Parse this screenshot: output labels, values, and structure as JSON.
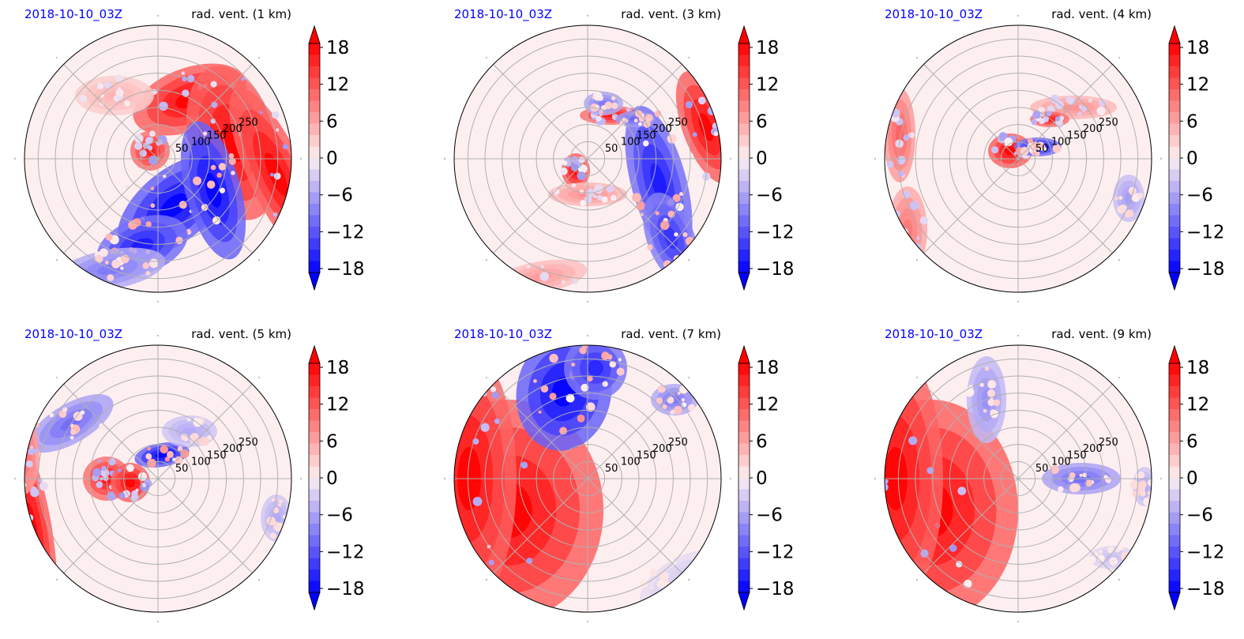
{
  "figure": {
    "colorbar_ticks": [
      "18",
      "12",
      "6",
      "0",
      "−6",
      "−12",
      "−18"
    ]
  },
  "colors": {
    "title_left": "#0000ff",
    "title_right": "#000000",
    "positive": "#ff0000",
    "negative": "#0000ff",
    "grid": "#b0b0b0"
  },
  "chart_data": [
    {
      "type": "polar-contourf",
      "title_left": "2018-10-10_03Z",
      "title_right": "rad. vent. (1 km)",
      "radial_ticks": [
        "50",
        "100",
        "150",
        "200",
        "250"
      ],
      "colorbar": {
        "min": -18,
        "max": 18,
        "ticks": [
          18,
          12,
          6,
          0,
          -6,
          -12,
          -18
        ],
        "extend": "both"
      },
      "features": [
        {
          "sign": "positive",
          "region": "northeast to east",
          "value": 18
        },
        {
          "sign": "negative",
          "region": "south to southeast",
          "value": -18
        }
      ]
    },
    {
      "type": "polar-contourf",
      "title_left": "2018-10-10_03Z",
      "title_right": "rad. vent. (3 km)",
      "radial_ticks": [
        "50",
        "100",
        "150",
        "200",
        "250"
      ],
      "colorbar": {
        "min": -18,
        "max": 18,
        "ticks": [
          18,
          12,
          6,
          0,
          -6,
          -12,
          -18
        ],
        "extend": "both"
      },
      "features": [
        {
          "sign": "positive",
          "region": "east edge",
          "value": 18
        },
        {
          "sign": "negative",
          "region": "east-southeast",
          "value": -18
        }
      ]
    },
    {
      "type": "polar-contourf",
      "title_left": "2018-10-10_03Z",
      "title_right": "rad. vent. (4 km)",
      "radial_ticks": [
        "50",
        "100",
        "150",
        "200",
        "250"
      ],
      "colorbar": {
        "min": -18,
        "max": 18,
        "ticks": [
          18,
          12,
          6,
          0,
          -6,
          -12,
          -18
        ],
        "extend": "both"
      },
      "features": [
        {
          "sign": "positive",
          "region": "center-west",
          "value": 18
        },
        {
          "sign": "negative",
          "region": "center-east",
          "value": -18
        }
      ]
    },
    {
      "type": "polar-contourf",
      "title_left": "2018-10-10_03Z",
      "title_right": "rad. vent. (5 km)",
      "radial_ticks": [
        "50",
        "100",
        "150",
        "200",
        "250"
      ],
      "colorbar": {
        "min": -18,
        "max": 18,
        "ticks": [
          18,
          12,
          6,
          0,
          -6,
          -12,
          -18
        ],
        "extend": "both"
      },
      "features": [
        {
          "sign": "positive",
          "region": "west edge",
          "value": 18
        },
        {
          "sign": "negative",
          "region": "northwest",
          "value": -12
        }
      ]
    },
    {
      "type": "polar-contourf",
      "title_left": "2018-10-10_03Z",
      "title_right": "rad. vent. (7 km)",
      "radial_ticks": [
        "50",
        "100",
        "150",
        "200",
        "250"
      ],
      "colorbar": {
        "min": -18,
        "max": 18,
        "ticks": [
          18,
          12,
          6,
          0,
          -6,
          -12,
          -18
        ],
        "extend": "both"
      },
      "features": [
        {
          "sign": "positive",
          "region": "west half",
          "value": 18
        },
        {
          "sign": "negative",
          "region": "north",
          "value": -18
        }
      ]
    },
    {
      "type": "polar-contourf",
      "title_left": "2018-10-10_03Z",
      "title_right": "rad. vent. (9 km)",
      "radial_ticks": [
        "50",
        "100",
        "150",
        "200",
        "250"
      ],
      "colorbar": {
        "min": -18,
        "max": 18,
        "ticks": [
          18,
          12,
          6,
          0,
          -6,
          -12,
          -18
        ],
        "extend": "both"
      },
      "features": [
        {
          "sign": "positive",
          "region": "west half",
          "value": 18
        },
        {
          "sign": "negative",
          "region": "east",
          "value": -12
        }
      ]
    }
  ]
}
